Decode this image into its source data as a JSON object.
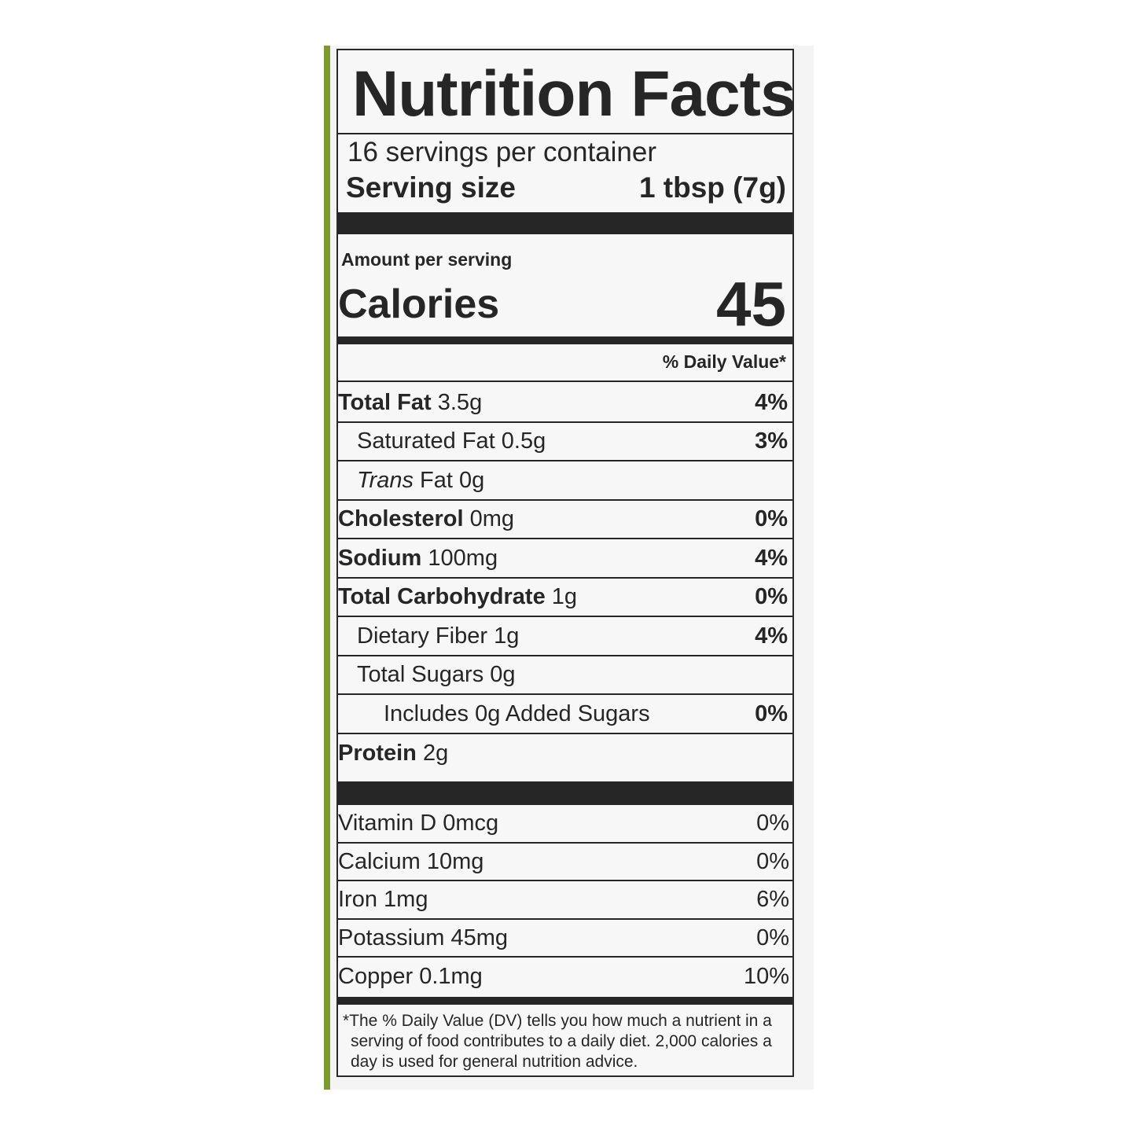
{
  "title": "Nutrition Facts",
  "servings_per_container": "16 servings per container",
  "serving_size_label": "Serving size",
  "serving_size_value": "1 tbsp (7g)",
  "amount_per_serving": "Amount per serving",
  "calories_label": "Calories",
  "calories_value": "45",
  "daily_value_header": "% Daily Value*",
  "nutrients": [
    {
      "name": "Total Fat",
      "amount": "3.5g",
      "dv": "4%",
      "bold": true,
      "indent": 0
    },
    {
      "name": "Saturated Fat",
      "amount": "0.5g",
      "dv": "3%",
      "bold": false,
      "indent": 1
    },
    {
      "name": "Trans",
      "name_rest": "Fat",
      "amount": "0g",
      "dv": "",
      "bold": false,
      "indent": 1
    },
    {
      "name": "Cholesterol",
      "amount": "0mg",
      "dv": "0%",
      "bold": true,
      "indent": 0
    },
    {
      "name": "Sodium",
      "amount": "100mg",
      "dv": "4%",
      "bold": true,
      "indent": 0
    },
    {
      "name": "Total Carbohydrate",
      "amount": "1g",
      "dv": "0%",
      "bold": true,
      "indent": 0
    },
    {
      "name": "Dietary Fiber",
      "amount": "1g",
      "dv": "4%",
      "bold": false,
      "indent": 1
    },
    {
      "name": "Total Sugars",
      "amount": "0g",
      "dv": "",
      "bold": false,
      "indent": 1
    },
    {
      "name": "Includes 0g Added Sugars",
      "amount": "",
      "dv": "0%",
      "bold": false,
      "indent": 2
    },
    {
      "name": "Protein",
      "amount": "2g",
      "dv": "",
      "bold": true,
      "indent": 0
    }
  ],
  "vitamins": [
    {
      "name": "Vitamin D",
      "amount": "0mcg",
      "dv": "0%"
    },
    {
      "name": "Calcium",
      "amount": "10mg",
      "dv": "0%"
    },
    {
      "name": "Iron",
      "amount": "1mg",
      "dv": "6%"
    },
    {
      "name": "Potassium",
      "amount": "45mg",
      "dv": "0%"
    },
    {
      "name": "Copper",
      "amount": "0.1mg",
      "dv": "10%"
    }
  ],
  "footnote": "*The % Daily Value (DV) tells you how much a nutrient in a serving of food contributes to a daily diet. 2,000 calories a day is used for general nutrition advice.",
  "colors": {
    "package_edge": "#7c9a30",
    "ink": "#262626"
  }
}
